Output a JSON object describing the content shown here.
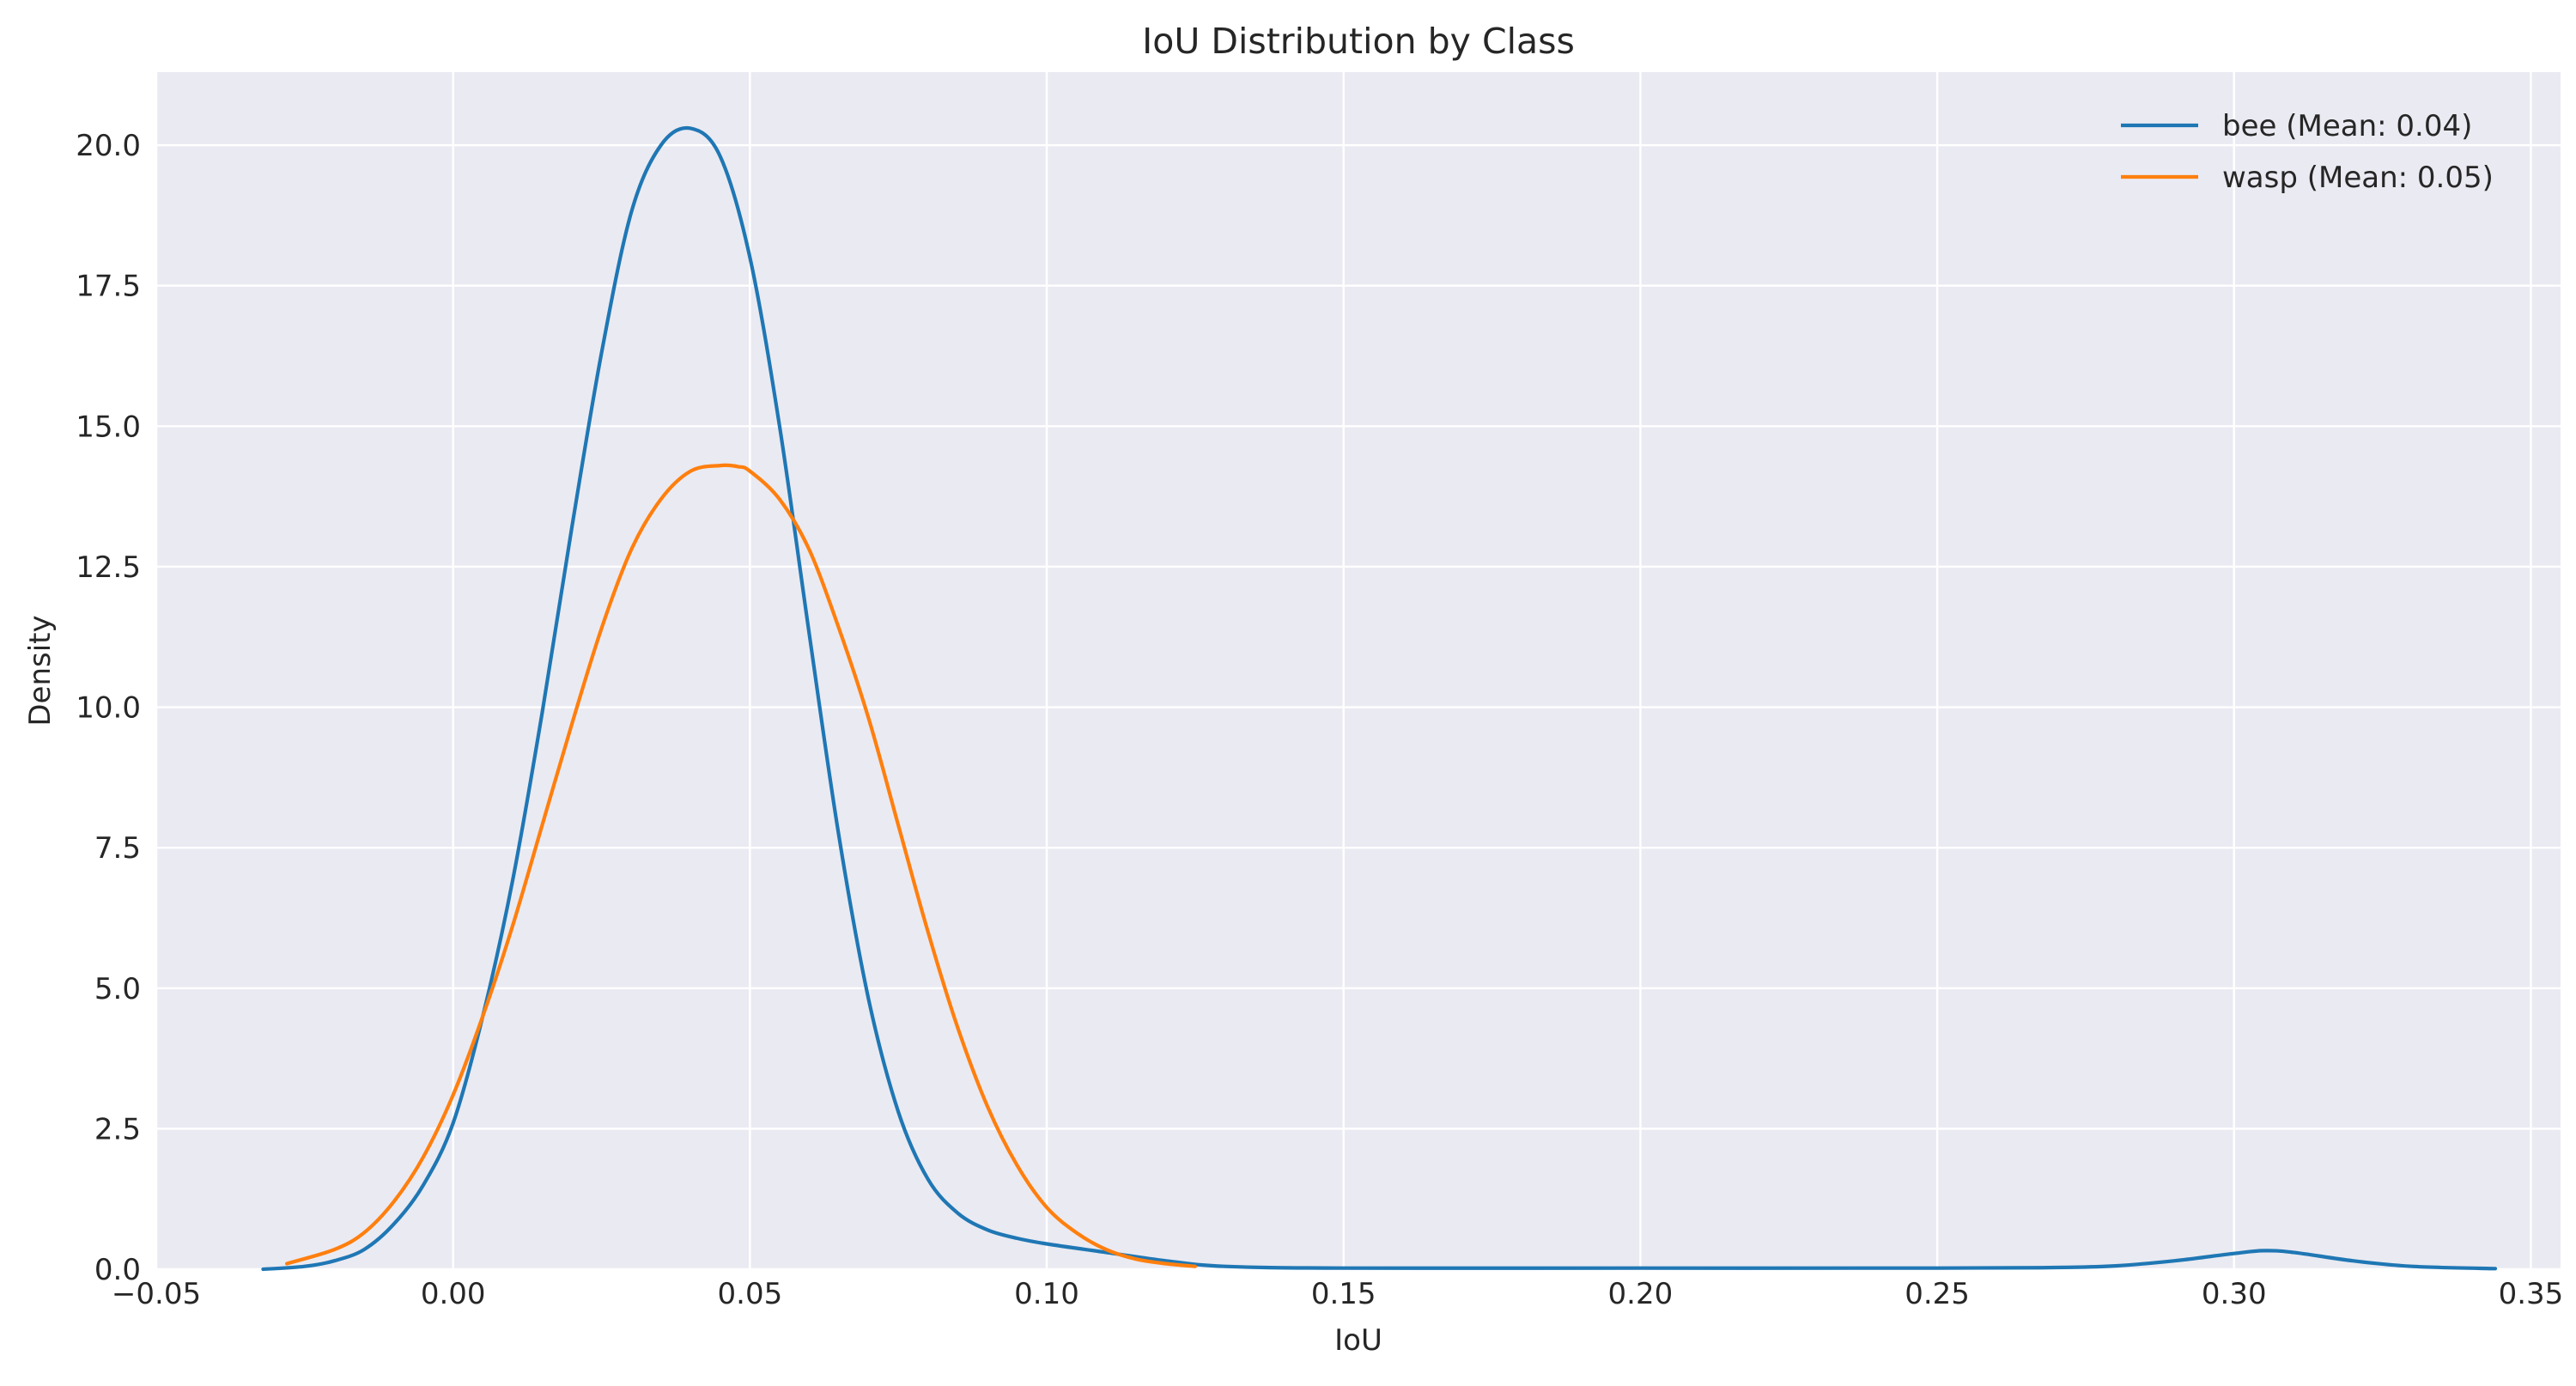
{
  "chart_data": {
    "type": "line",
    "title": "IoU Distribution by Class",
    "xlabel": "IoU",
    "ylabel": "Density",
    "xlim": [
      -0.05,
      0.355
    ],
    "ylim": [
      0,
      21.3
    ],
    "xticks": [
      -0.05,
      0.0,
      0.05,
      0.1,
      0.15,
      0.2,
      0.25,
      0.3,
      0.35
    ],
    "xtick_labels": [
      "−0.05",
      "0.00",
      "0.05",
      "0.10",
      "0.15",
      "0.20",
      "0.25",
      "0.30",
      "0.35"
    ],
    "yticks": [
      0.0,
      2.5,
      5.0,
      7.5,
      10.0,
      12.5,
      15.0,
      17.5,
      20.0
    ],
    "ytick_labels": [
      "0.0",
      "2.5",
      "5.0",
      "7.5",
      "10.0",
      "12.5",
      "15.0",
      "17.5",
      "20.0"
    ],
    "grid": true,
    "legend_position": "top-right",
    "series": [
      {
        "name": "bee (Mean: 0.04)",
        "color": "#1f77b4",
        "x": [
          -0.032,
          -0.025,
          -0.02,
          -0.015,
          -0.01,
          -0.005,
          0.0,
          0.005,
          0.01,
          0.015,
          0.02,
          0.025,
          0.03,
          0.035,
          0.04,
          0.045,
          0.05,
          0.055,
          0.06,
          0.065,
          0.07,
          0.075,
          0.08,
          0.085,
          0.09,
          0.095,
          0.1,
          0.11,
          0.12,
          0.13,
          0.15,
          0.2,
          0.25,
          0.27,
          0.28,
          0.29,
          0.3,
          0.305,
          0.31,
          0.32,
          0.33,
          0.344
        ],
        "y": [
          0.0,
          0.05,
          0.15,
          0.35,
          0.8,
          1.5,
          2.6,
          4.5,
          6.9,
          9.9,
          13.2,
          16.3,
          18.8,
          20.0,
          20.3,
          19.8,
          18.0,
          15.0,
          11.3,
          7.7,
          4.8,
          2.8,
          1.6,
          1.0,
          0.7,
          0.55,
          0.45,
          0.3,
          0.15,
          0.05,
          0.02,
          0.02,
          0.02,
          0.03,
          0.06,
          0.15,
          0.28,
          0.33,
          0.3,
          0.15,
          0.05,
          0.01
        ]
      },
      {
        "name": "wasp (Mean: 0.05)",
        "color": "#ff7f0e",
        "x": [
          -0.028,
          -0.02,
          -0.015,
          -0.01,
          -0.005,
          0.0,
          0.005,
          0.01,
          0.015,
          0.02,
          0.025,
          0.03,
          0.035,
          0.04,
          0.045,
          0.048,
          0.05,
          0.055,
          0.06,
          0.065,
          0.07,
          0.075,
          0.08,
          0.085,
          0.09,
          0.095,
          0.1,
          0.105,
          0.11,
          0.115,
          0.12,
          0.125
        ],
        "y": [
          0.1,
          0.35,
          0.65,
          1.2,
          2.0,
          3.1,
          4.5,
          6.1,
          7.9,
          9.7,
          11.4,
          12.8,
          13.7,
          14.2,
          14.3,
          14.28,
          14.2,
          13.7,
          12.8,
          11.4,
          9.8,
          7.9,
          6.0,
          4.3,
          2.9,
          1.85,
          1.1,
          0.65,
          0.35,
          0.18,
          0.1,
          0.05
        ]
      }
    ]
  }
}
